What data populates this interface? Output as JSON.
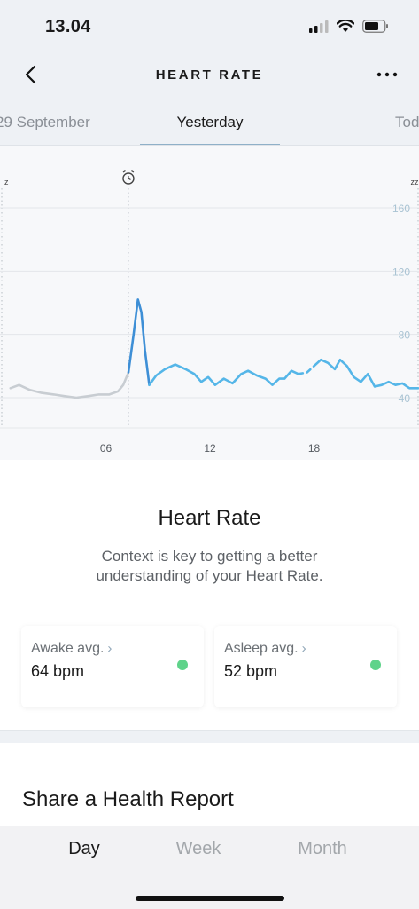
{
  "status_bar": {
    "time": "13.04",
    "icons": [
      "cellular-signal-icon",
      "wifi-icon",
      "battery-icon"
    ]
  },
  "nav": {
    "title": "HEART RATE",
    "back_icon": "chevron-left-icon",
    "more_icon": "more-horizontal-icon"
  },
  "date_tabs": {
    "prev": "29 September",
    "current": "Yesterday",
    "next": "Today"
  },
  "chart_data": {
    "type": "line",
    "x_ticks": [
      "06",
      "12",
      "18"
    ],
    "y_ticks": [
      "160",
      "120",
      "80",
      "40"
    ],
    "ylim": [
      20,
      180
    ],
    "xlim": [
      0,
      24
    ],
    "markers": [
      {
        "name": "sleep-icon",
        "x": 0
      },
      {
        "name": "alarm-icon",
        "x": 7.3
      },
      {
        "name": "sleep-icon",
        "x": 24
      }
    ],
    "series": [
      {
        "color": "#c8cdd2",
        "points": [
          [
            0.5,
            46
          ],
          [
            1.0,
            48
          ],
          [
            1.6,
            45
          ],
          [
            2.3,
            43
          ],
          [
            3.0,
            42
          ],
          [
            3.6,
            41
          ],
          [
            4.3,
            40
          ],
          [
            5.0,
            41
          ],
          [
            5.6,
            42
          ],
          [
            6.2,
            42
          ],
          [
            6.7,
            44
          ],
          [
            7.0,
            48
          ],
          [
            7.3,
            56
          ]
        ]
      },
      {
        "color": "#3e8fd6",
        "points": [
          [
            7.3,
            56
          ],
          [
            7.6,
            80
          ],
          [
            7.85,
            102
          ],
          [
            8.05,
            94
          ],
          [
            8.25,
            70
          ],
          [
            8.5,
            48
          ]
        ]
      },
      {
        "color": "#55b6e8",
        "points": [
          [
            8.5,
            48
          ],
          [
            8.9,
            54
          ],
          [
            9.4,
            58
          ],
          [
            10.0,
            61
          ],
          [
            10.6,
            58
          ],
          [
            11.1,
            55
          ],
          [
            11.5,
            50
          ],
          [
            11.9,
            53
          ],
          [
            12.3,
            48
          ],
          [
            12.8,
            52
          ],
          [
            13.3,
            49
          ],
          [
            13.8,
            55
          ],
          [
            14.2,
            57
          ],
          [
            14.7,
            54
          ],
          [
            15.2,
            52
          ],
          [
            15.6,
            48
          ],
          [
            16.0,
            52
          ],
          [
            16.3,
            52
          ],
          [
            16.7,
            57
          ],
          [
            17.1,
            55
          ]
        ]
      },
      {
        "color": "#55b6e8",
        "dashed": true,
        "points": [
          [
            17.1,
            55
          ],
          [
            17.6,
            56
          ],
          [
            18.0,
            60
          ]
        ]
      },
      {
        "color": "#55b6e8",
        "points": [
          [
            18.0,
            60
          ],
          [
            18.4,
            64
          ],
          [
            18.8,
            62
          ],
          [
            19.2,
            58
          ],
          [
            19.5,
            64
          ],
          [
            19.9,
            60
          ],
          [
            20.3,
            53
          ],
          [
            20.7,
            50
          ],
          [
            21.1,
            55
          ],
          [
            21.5,
            47
          ],
          [
            21.9,
            48
          ],
          [
            22.3,
            50
          ],
          [
            22.7,
            48
          ],
          [
            23.1,
            49
          ],
          [
            23.5,
            46
          ],
          [
            24.0,
            46
          ]
        ]
      }
    ]
  },
  "main": {
    "title": "Heart Rate",
    "subtitle": "Context is key to getting a better understanding of your Heart Rate.",
    "cards": [
      {
        "label": "Awake avg.",
        "chevron": "›",
        "value": "64 bpm",
        "dot_color": "#5fd38a"
      },
      {
        "label": "Asleep avg.",
        "chevron": "›",
        "value": "52 bpm",
        "dot_color": "#5fd38a"
      }
    ]
  },
  "share": {
    "title": "Share a Health Report"
  },
  "bottom_tabs": {
    "day": "Day",
    "week": "Week",
    "month": "Month",
    "active": "Day"
  }
}
